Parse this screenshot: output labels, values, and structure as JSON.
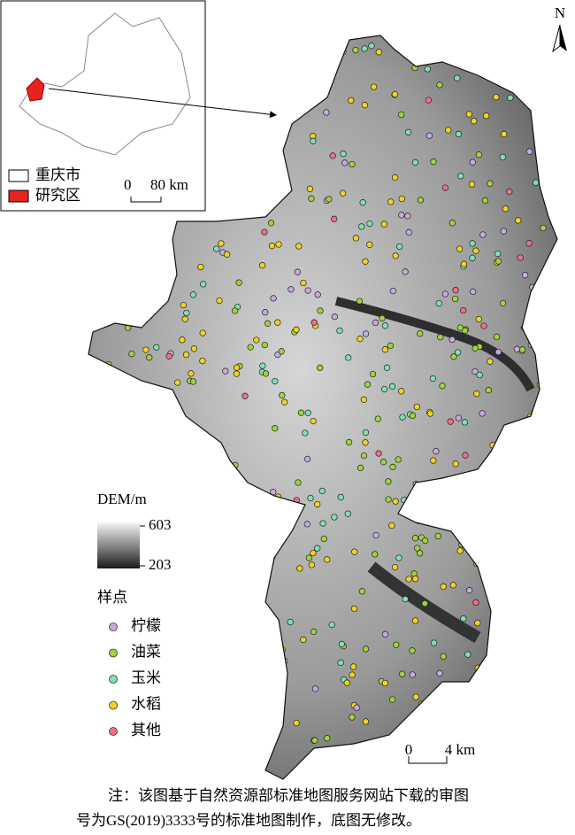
{
  "inset": {
    "legend": [
      "重庆市",
      "研究区"
    ],
    "scale": {
      "zero": "0",
      "end": "80 km"
    }
  },
  "north": "N",
  "dem_legend": {
    "title": "DEM/m",
    "max": 603,
    "min": 203
  },
  "sample_legend": {
    "title": "样点",
    "items": [
      {
        "label": "柠檬",
        "color": "#c9a9dd"
      },
      {
        "label": "油菜",
        "color": "#9fd33a"
      },
      {
        "label": "玉米",
        "color": "#7fe0b0"
      },
      {
        "label": "水稻",
        "color": "#f0d321"
      },
      {
        "label": "其他",
        "color": "#ef6f86"
      }
    ]
  },
  "scale": {
    "zero": "0",
    "end": "4 km"
  },
  "note": [
    "注：该图基于自然资源部标准地图服务网站下载的审图",
    "号为GS(2019)3333号的标准地图制作，底图无修改。"
  ]
}
